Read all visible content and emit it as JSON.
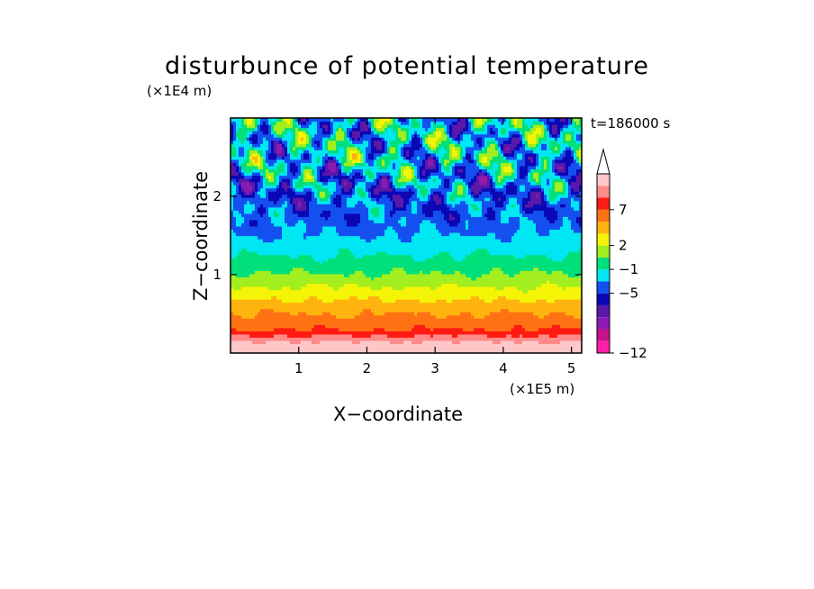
{
  "chart_data": {
    "type": "heatmap",
    "title": "disturbunce of potential temperature",
    "xlabel": "X−coordinate",
    "ylabel": "Z−coordinate",
    "x_unit": "(×1E5 m)",
    "y_unit": "(×1E4 m)",
    "annotation": "t=186000 s",
    "xlim": [
      0,
      5.15
    ],
    "ylim": [
      0,
      3.0
    ],
    "x_ticks": [
      "1",
      "2",
      "3",
      "4",
      "5"
    ],
    "x_tick_values": [
      1,
      2,
      3,
      4,
      5
    ],
    "y_ticks": [
      "1",
      "2"
    ],
    "y_tick_values": [
      1,
      2
    ],
    "colorbar": {
      "labels": [
        "−12",
        "−5",
        "−1",
        "2",
        "7"
      ],
      "label_positions": [
        0,
        5,
        7,
        9,
        12
      ],
      "colors": [
        "#ff1fa6",
        "#c8128c",
        "#8c1ab4",
        "#5a18a8",
        "#0a08b4",
        "#1450f0",
        "#00e6f2",
        "#00e07a",
        "#a2ee1e",
        "#f4f407",
        "#ffb30e",
        "#ff7214",
        "#ff1a12",
        "#ff8a8a",
        "#ffc8c8"
      ],
      "extend": "max"
    },
    "z_levels": [
      9.0,
      5.0,
      3.5,
      2.0,
      1.1,
      0.2,
      -0.8,
      -1.6,
      -1.5,
      -0.5,
      -0.6
    ],
    "z_heights": [
      0.0,
      0.3,
      0.6,
      0.85,
      1.0,
      1.2,
      1.45,
      1.75,
      2.1,
      2.5,
      3.0
    ]
  }
}
